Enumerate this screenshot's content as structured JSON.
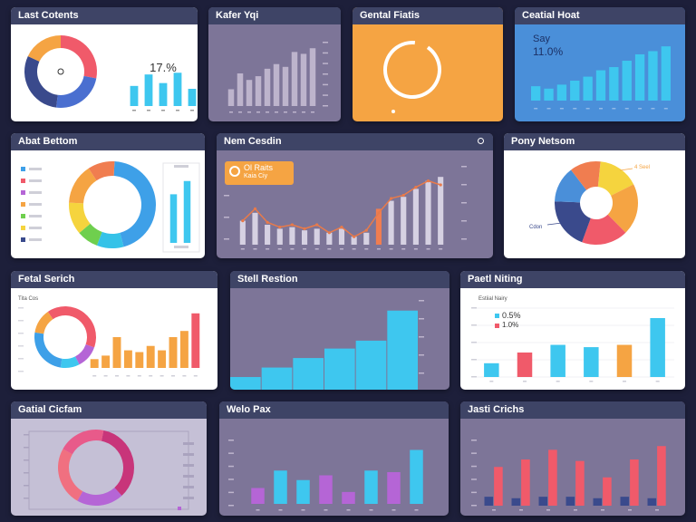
{
  "colors": {
    "background": "#1d1f3a",
    "header": "#3e4466",
    "white_panel": "#ffffff",
    "purple_panel": "#7d7598",
    "orange": "#f5a443",
    "blue": "#3ec7ef",
    "blue_panel": "#4a8fd9",
    "red": "#f05a6a",
    "violet": "#b565d6",
    "navy": "#3a4a8c"
  },
  "cards": [
    {
      "id": "c1",
      "title": "Last Cotents",
      "theme": "white"
    },
    {
      "id": "c2",
      "title": "Kafer Yqi",
      "theme": "purple"
    },
    {
      "id": "c3",
      "title": "Gental Fiatis",
      "theme": "orange"
    },
    {
      "id": "c4",
      "title": "Ceatial Hoat",
      "theme": "blue"
    },
    {
      "id": "c5",
      "title": "Abat Bettom",
      "theme": "white"
    },
    {
      "id": "c6",
      "title": "Nem Cesdin",
      "theme": "purple"
    },
    {
      "id": "c7",
      "title": "Pony Netsom",
      "theme": "white"
    },
    {
      "id": "c8",
      "title": "Fetal Serich",
      "theme": "white"
    },
    {
      "id": "c9",
      "title": "Stell Restion",
      "theme": "purple"
    },
    {
      "id": "c10",
      "title": "Paetl Niting",
      "theme": "white"
    },
    {
      "id": "c11",
      "title": "Gatial Cicfam",
      "theme": "lavender"
    },
    {
      "id": "c12",
      "title": "Welo Pax",
      "theme": "purple"
    },
    {
      "id": "c13",
      "title": "Jasti Crichs",
      "theme": "purple"
    }
  ],
  "labels": {
    "c1_big": "17.%",
    "c1_small": "",
    "c3_caption": "",
    "c4_line1": "Say",
    "c4_line2": "11.0%",
    "c6_badge1": "Ol Raits",
    "c6_badge2": "Kaia Ciy",
    "c7_label1": "4 Seel",
    "c7_label2": "Cdon",
    "c8_label": "Tita Cos",
    "c10_legend": "Estiial Nairy",
    "c10_item1": "0.5%",
    "c10_item2": "1.0%"
  },
  "chart_data": [
    {
      "id": "c1-donut",
      "type": "pie",
      "donut": true,
      "values": [
        28,
        24,
        30,
        18
      ],
      "colors": [
        "#f05a6a",
        "#4a6fd0",
        "#3a4a8c",
        "#f5a443"
      ]
    },
    {
      "id": "c1-bars",
      "type": "bar",
      "values": [
        35,
        55,
        40,
        58,
        30
      ],
      "ylim": [
        0,
        60
      ],
      "color": "#3ec7ef"
    },
    {
      "id": "c2-bars",
      "type": "bar",
      "values": [
        18,
        35,
        28,
        32,
        40,
        45,
        42,
        58,
        56,
        62
      ],
      "ylim": [
        0,
        70
      ],
      "color": "#bdb4cc"
    },
    {
      "id": "c3-ring",
      "type": "pie",
      "donut": true,
      "values": [
        92,
        8
      ],
      "colors": [
        "#ffffff",
        "#f5a443"
      ]
    },
    {
      "id": "c4-bars",
      "type": "bar",
      "values": [
        18,
        15,
        20,
        25,
        30,
        38,
        42,
        50,
        58,
        62,
        68
      ],
      "ylim": [
        0,
        75
      ],
      "color": "#3ec7ef"
    },
    {
      "id": "c5-donut",
      "type": "pie",
      "donut": true,
      "values": [
        45,
        10,
        8,
        12,
        15,
        10
      ],
      "colors": [
        "#3ea0e8",
        "#35c2e8",
        "#6fcf4e",
        "#f5d43e",
        "#f5a443",
        "#f07d50"
      ]
    },
    {
      "id": "c5-legend",
      "colors": [
        "#3ea0e8",
        "#f05a6a",
        "#b565d6",
        "#f5a443",
        "#6fcf4e",
        "#f5d43e",
        "#3a4a8c"
      ]
    },
    {
      "id": "c5-bars",
      "type": "bar",
      "values": [
        55,
        70
      ],
      "ylim": [
        0,
        80
      ],
      "color": "#3ec7ef"
    },
    {
      "id": "c6-combo",
      "type": "bar",
      "values": [
        30,
        40,
        25,
        20,
        22,
        18,
        20,
        15,
        20,
        10,
        15,
        45,
        55,
        60,
        70,
        80,
        85
      ],
      "line": [
        30,
        45,
        28,
        22,
        25,
        20,
        25,
        15,
        22,
        10,
        18,
        40,
        58,
        62,
        72,
        80,
        75
      ],
      "ylim": [
        0,
        100
      ],
      "bar_color": "#d6d1e2",
      "line_color": "#e87a4a",
      "highlight_index": 11
    },
    {
      "id": "c7-donut",
      "type": "pie",
      "donut": true,
      "values": [
        16,
        20,
        18,
        20,
        14,
        12
      ],
      "colors": [
        "#f5d43e",
        "#f5a443",
        "#f05a6a",
        "#3a4a8c",
        "#4a8fd9",
        "#f07d50"
      ]
    },
    {
      "id": "c8-donut",
      "type": "pie",
      "donut": true,
      "values": [
        40,
        12,
        10,
        25,
        13
      ],
      "colors": [
        "#f05a6a",
        "#b565d6",
        "#3ec7ef",
        "#3ea0e8",
        "#f5a443"
      ]
    },
    {
      "id": "c8-bars",
      "type": "bar",
      "values": [
        10,
        14,
        35,
        20,
        18,
        25,
        20,
        35,
        42,
        62
      ],
      "ylim": [
        0,
        70
      ],
      "color": "#f5a443",
      "highlight_index": 9,
      "highlight_color": "#f05a6a"
    },
    {
      "id": "c9-bars",
      "type": "bar",
      "values": [
        16,
        28,
        40,
        52,
        62,
        100
      ],
      "ylim": [
        0,
        110
      ],
      "color": "#3ec7ef"
    },
    {
      "id": "c10-bars",
      "type": "bar",
      "values": [
        18,
        32,
        42,
        39,
        42,
        77
      ],
      "ylim": [
        0,
        90
      ],
      "colors": [
        "#3ec7ef",
        "#f05a6a",
        "#3ec7ef",
        "#3ec7ef",
        "#f5a443",
        "#3ec7ef"
      ]
    },
    {
      "id": "c11-donut",
      "type": "pie",
      "donut": true,
      "values": [
        35,
        20,
        25,
        20
      ],
      "colors": [
        "#c8357a",
        "#b565d6",
        "#f07080",
        "#e85a8a"
      ]
    },
    {
      "id": "c12-bars",
      "type": "bar",
      "values": [
        20,
        42,
        30,
        36,
        15,
        42,
        40,
        68
      ],
      "ylim": [
        0,
        80
      ],
      "colors": [
        "#b565d6",
        "#3ec7ef",
        "#3ec7ef",
        "#b565d6",
        "#b565d6",
        "#3ec7ef",
        "#b565d6",
        "#3ec7ef"
      ]
    },
    {
      "id": "c13-bars",
      "type": "bar",
      "categories_count": 7,
      "series": [
        {
          "values": [
            12,
            10,
            12,
            12,
            10,
            12,
            10
          ],
          "color": "#3a4a8c"
        },
        {
          "values": [
            52,
            62,
            75,
            60,
            38,
            62,
            80
          ],
          "color": "#f05a6a"
        }
      ],
      "ylim": [
        0,
        90
      ]
    }
  ]
}
